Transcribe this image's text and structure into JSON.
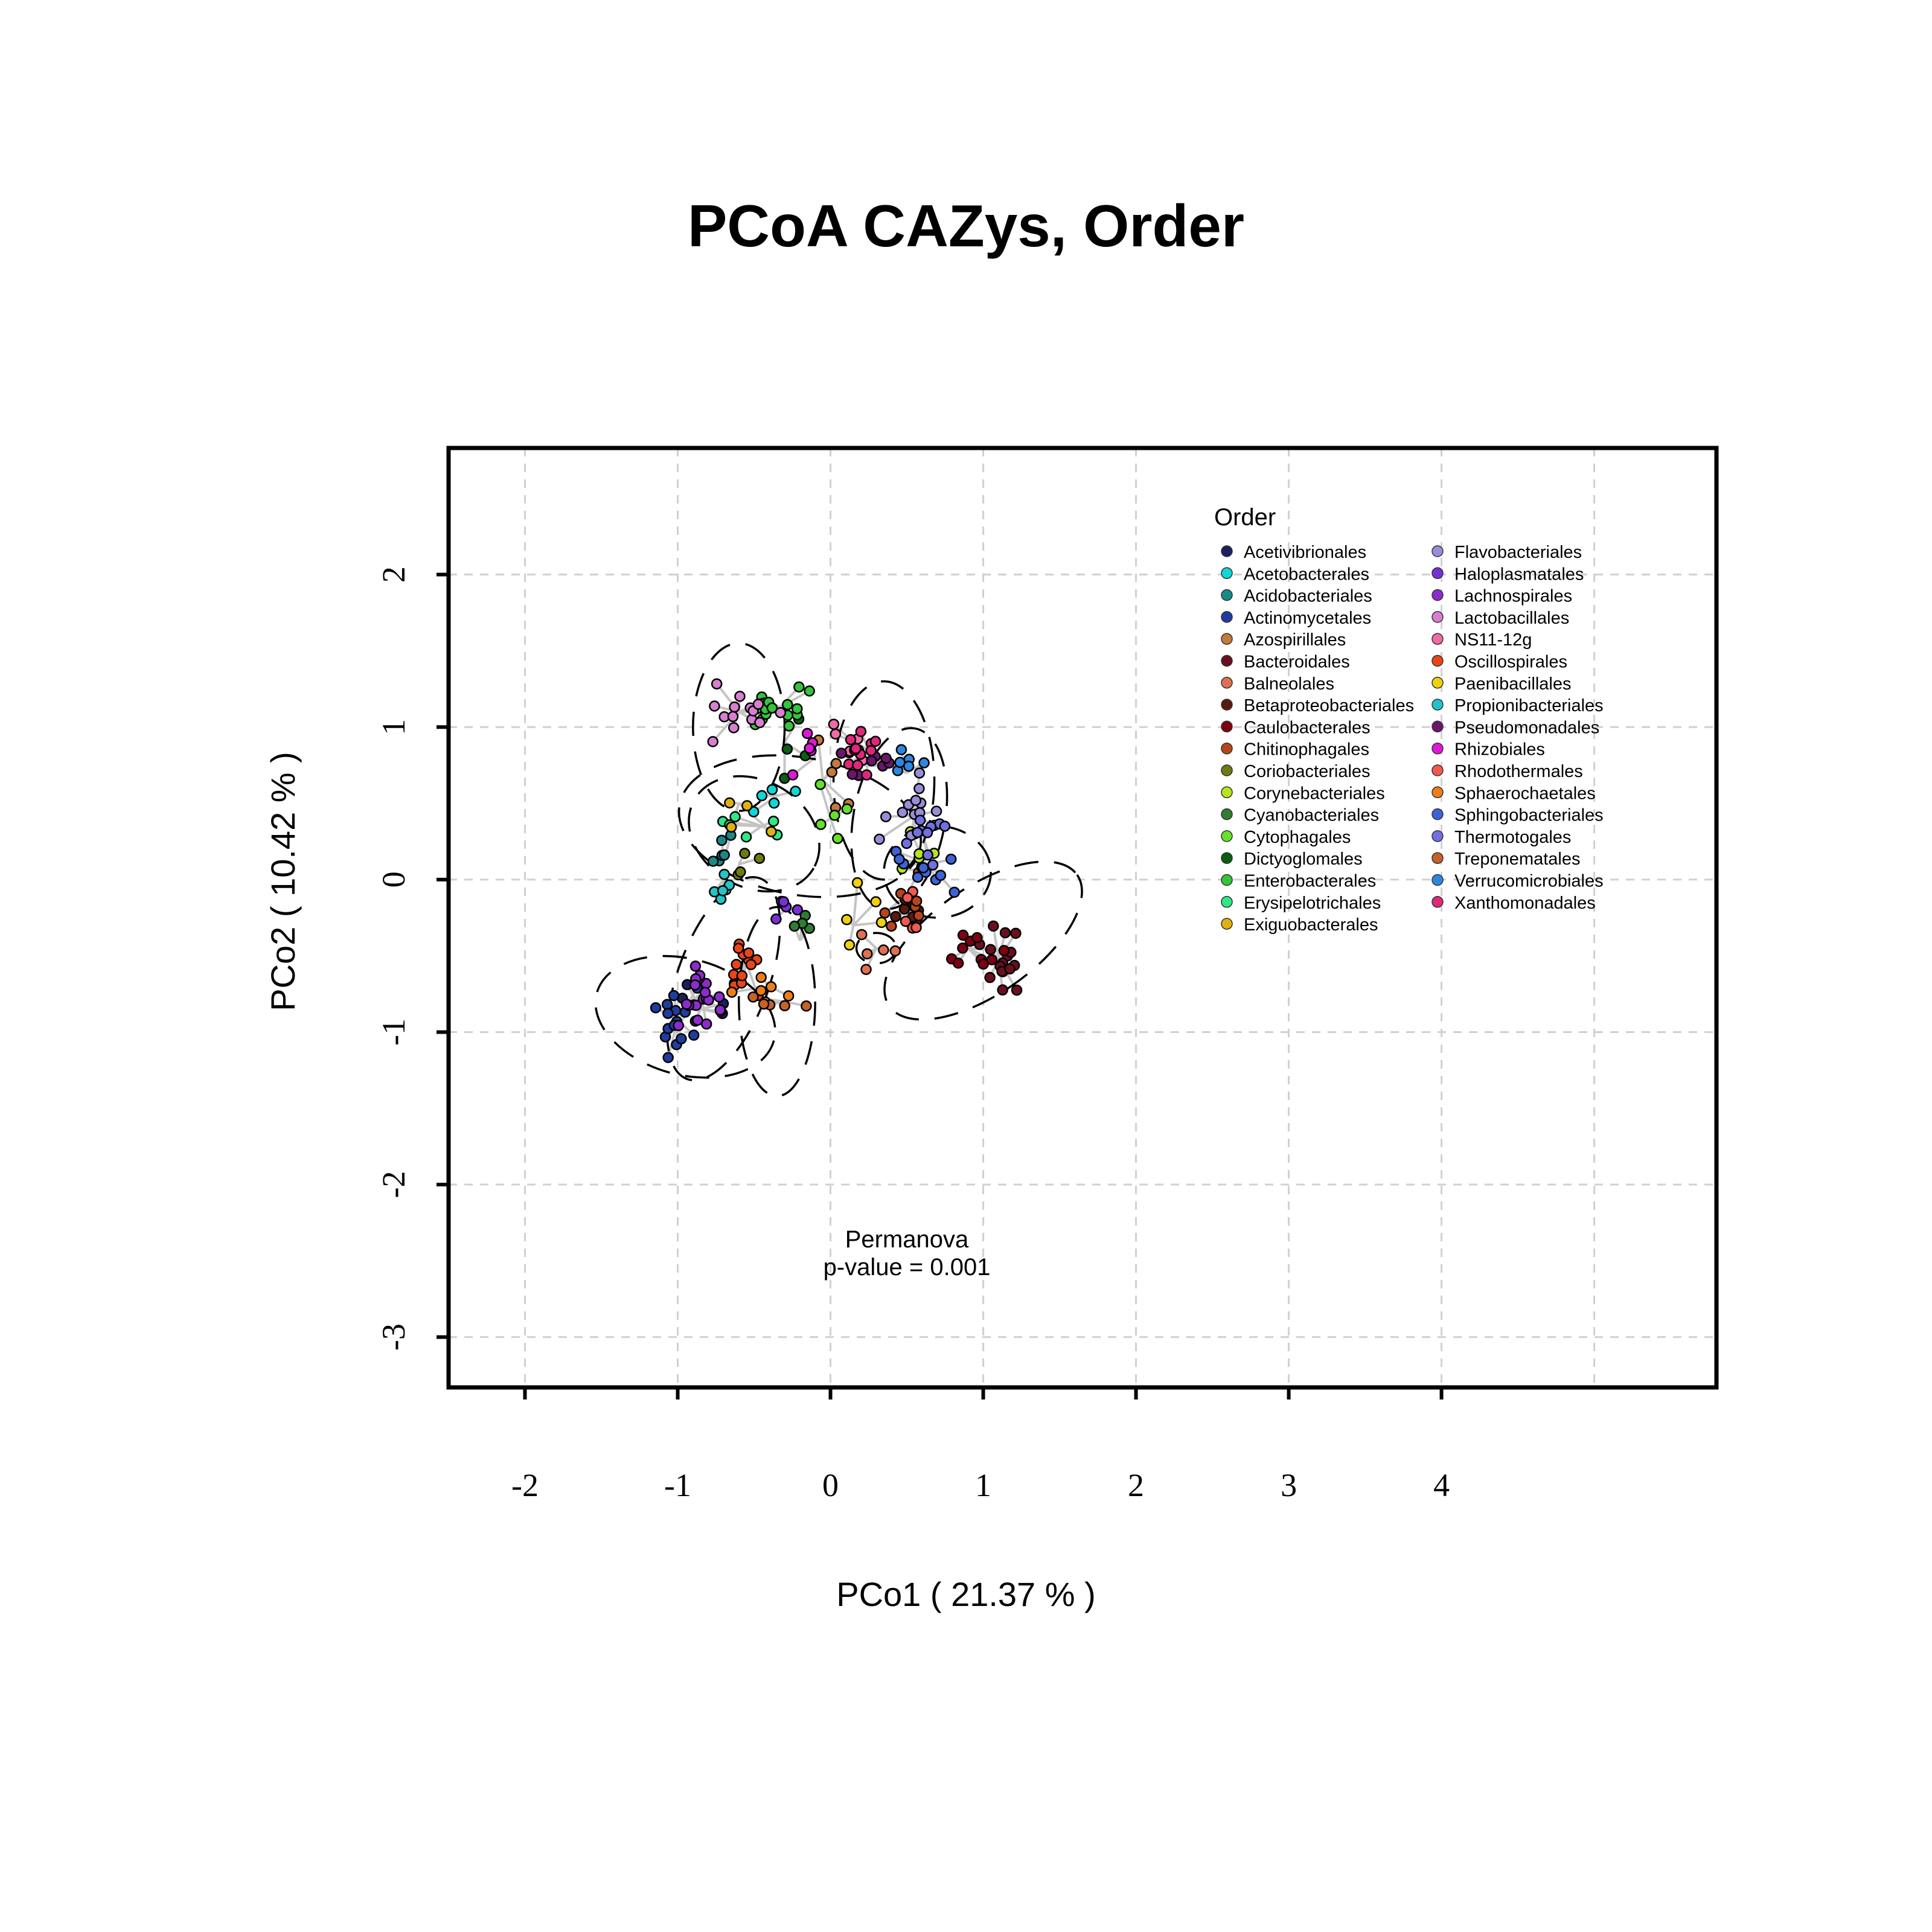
{
  "chart_data": {
    "type": "scatter",
    "title": "PCoA CAZys, Order",
    "xlabel": "PCo1 ( 21.37 % )",
    "ylabel": "PCo2 ( 10.42 % )",
    "xlim": [
      -2.5,
      5.8
    ],
    "ylim": [
      -3.33,
      2.83
    ],
    "x_ticks": [
      -2,
      -1,
      0,
      1,
      2,
      3,
      4
    ],
    "x_tick_labels": [
      "-2",
      "-1",
      "0",
      "1",
      "2",
      "3",
      "4"
    ],
    "y_ticks": [
      -3,
      -2,
      -1,
      0,
      1,
      2
    ],
    "y_tick_labels": [
      "-3",
      "-2",
      "-1",
      "0",
      "1",
      "2"
    ],
    "x_grid": [
      -2,
      -1,
      0,
      1,
      2,
      3,
      4,
      5
    ],
    "grid": true,
    "legend": {
      "title": "Order",
      "placement": "top-right"
    },
    "annotation": [
      "Permanova",
      "p-value = 0.001"
    ],
    "series": [
      {
        "name": "Acetivibrionales",
        "color": "#1b1f5e",
        "centroid": [
          -0.85,
          -0.85
        ],
        "n": 6
      },
      {
        "name": "Acetobacterales",
        "color": "#10d6d6",
        "centroid": [
          -0.35,
          0.55
        ],
        "n": 5
      },
      {
        "name": "Acidobacteriales",
        "color": "#178a88",
        "centroid": [
          -0.7,
          0.12
        ],
        "n": 6
      },
      {
        "name": "Actinomycetales",
        "color": "#1f3c9e",
        "centroid": [
          -1.0,
          -0.92
        ],
        "n": 16
      },
      {
        "name": "Azospirillales",
        "color": "#c47a3b",
        "centroid": [
          -0.05,
          0.65
        ],
        "n": 5
      },
      {
        "name": "Bacteroidales",
        "color": "#6b0f1f",
        "centroid": [
          1.1,
          -0.52
        ],
        "n": 16
      },
      {
        "name": "Balneolales",
        "color": "#e07050",
        "centroid": [
          0.3,
          -0.45
        ],
        "n": 5
      },
      {
        "name": "Betaproteobacteriales",
        "color": "#5a1a10",
        "centroid": [
          0.55,
          -0.2
        ],
        "n": 8
      },
      {
        "name": "Caulobacterales",
        "color": "#800012",
        "centroid": [
          0.9,
          -0.45
        ],
        "n": 10
      },
      {
        "name": "Chitinophagales",
        "color": "#b8441c",
        "centroid": [
          0.5,
          -0.1
        ],
        "n": 7
      },
      {
        "name": "Coriobacteriales",
        "color": "#6f7a10",
        "centroid": [
          -0.6,
          0.1
        ],
        "n": 4
      },
      {
        "name": "Corynebacteriales",
        "color": "#b5e61d",
        "centroid": [
          0.65,
          0.05
        ],
        "n": 6
      },
      {
        "name": "Cyanobacteriales",
        "color": "#2e7d32",
        "centroid": [
          -0.2,
          -0.4
        ],
        "n": 4
      },
      {
        "name": "Cytophagales",
        "color": "#66e02a",
        "centroid": [
          0.0,
          0.4
        ],
        "n": 5
      },
      {
        "name": "Dictyoglomales",
        "color": "#0b5e12",
        "centroid": [
          -0.3,
          0.9
        ],
        "n": 4
      },
      {
        "name": "Enterobacterales",
        "color": "#33c43a",
        "centroid": [
          -0.33,
          1.13
        ],
        "n": 18
      },
      {
        "name": "Erysipelotrichales",
        "color": "#2ee888",
        "centroid": [
          -0.45,
          0.35
        ],
        "n": 6
      },
      {
        "name": "Exiguobacterales",
        "color": "#e0b010",
        "centroid": [
          -0.6,
          0.5
        ],
        "n": 4
      },
      {
        "name": "Flavobacteriales",
        "color": "#9a8cd8",
        "centroid": [
          0.55,
          0.42
        ],
        "n": 14
      },
      {
        "name": "Haloplasmatales",
        "color": "#7a2ed8",
        "centroid": [
          -0.3,
          -0.2
        ],
        "n": 5
      },
      {
        "name": "Lachnospirales",
        "color": "#8e2bcc",
        "centroid": [
          -0.85,
          -0.75
        ],
        "n": 18
      },
      {
        "name": "Lactobacillales",
        "color": "#d77fd0",
        "centroid": [
          -0.6,
          1.1
        ],
        "n": 14
      },
      {
        "name": "NS11-12g",
        "color": "#f06aa8",
        "centroid": [
          0.15,
          0.9
        ],
        "n": 6
      },
      {
        "name": "Oscillospirales",
        "color": "#e8461a",
        "centroid": [
          -0.55,
          -0.55
        ],
        "n": 14
      },
      {
        "name": "Paenibacillales",
        "color": "#f0d010",
        "centroid": [
          0.15,
          -0.3
        ],
        "n": 5
      },
      {
        "name": "Propionibacteriales",
        "color": "#22c4c8",
        "centroid": [
          -0.7,
          0.0
        ],
        "n": 6
      },
      {
        "name": "Pseudomonadales",
        "color": "#6b156b",
        "centroid": [
          0.2,
          0.75
        ],
        "n": 8
      },
      {
        "name": "Rhizobiales",
        "color": "#e018d8",
        "centroid": [
          -0.1,
          0.8
        ],
        "n": 5
      },
      {
        "name": "Rhodothermales",
        "color": "#f05a50",
        "centroid": [
          0.5,
          -0.3
        ],
        "n": 5
      },
      {
        "name": "Sphaerochaetales",
        "color": "#ee7d1a",
        "centroid": [
          -0.4,
          -0.7
        ],
        "n": 6
      },
      {
        "name": "Sphingobacteriales",
        "color": "#3c64d8",
        "centroid": [
          0.65,
          0.1
        ],
        "n": 12
      },
      {
        "name": "Thermotogales",
        "color": "#7070e0",
        "centroid": [
          0.6,
          0.3
        ],
        "n": 10
      },
      {
        "name": "Treponematales",
        "color": "#c8602a",
        "centroid": [
          -0.3,
          -0.8
        ],
        "n": 5
      },
      {
        "name": "Verrucomicrobiales",
        "color": "#2e86e0",
        "centroid": [
          0.5,
          0.7
        ],
        "n": 6
      },
      {
        "name": "Xanthomonadales",
        "color": "#e0287a",
        "centroid": [
          0.25,
          0.85
        ],
        "n": 12
      }
    ],
    "ellipses": [
      {
        "cx": -0.6,
        "cy": 1.0,
        "rx": 0.3,
        "ry": 0.55,
        "angle": 0
      },
      {
        "cx": 0.35,
        "cy": 0.65,
        "rx": 0.33,
        "ry": 0.65,
        "angle": 0
      },
      {
        "cx": 1.0,
        "cy": -0.4,
        "rx": 0.75,
        "ry": 0.35,
        "angle": -35
      },
      {
        "cx": -0.95,
        "cy": -0.9,
        "rx": 0.6,
        "ry": 0.38,
        "angle": 15
      },
      {
        "cx": -0.35,
        "cy": -0.8,
        "rx": 0.25,
        "ry": 0.62,
        "angle": 0
      },
      {
        "cx": -0.7,
        "cy": -0.65,
        "rx": 0.3,
        "ry": 0.7,
        "angle": 20
      },
      {
        "cx": 0.45,
        "cy": 0.4,
        "rx": 0.3,
        "ry": 0.6,
        "angle": 10
      },
      {
        "cx": -0.2,
        "cy": 0.35,
        "rx": 0.8,
        "ry": 0.45,
        "angle": 10
      },
      {
        "cx": 0.7,
        "cy": 0.05,
        "rx": 0.35,
        "ry": 0.3,
        "angle": 0
      },
      {
        "cx": 0.3,
        "cy": -0.45,
        "rx": 0.13,
        "ry": 0.1,
        "angle": 0
      },
      {
        "cx": -0.5,
        "cy": 0.3,
        "rx": 0.45,
        "ry": 0.35,
        "angle": 30
      }
    ]
  }
}
